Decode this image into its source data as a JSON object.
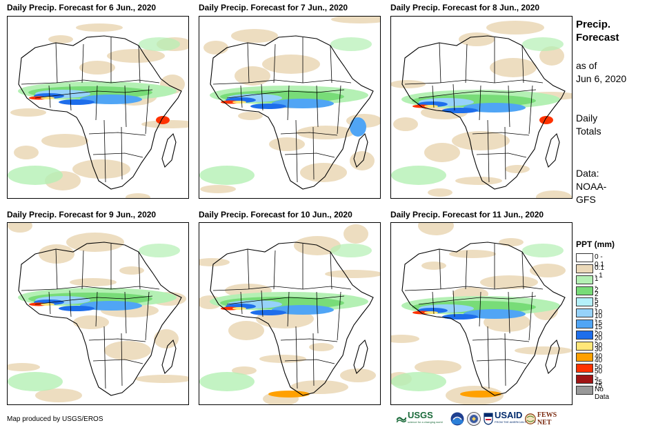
{
  "panels": [
    {
      "title": "Daily Precip. Forecast for 6 Jun., 2020"
    },
    {
      "title": "Daily Precip. Forecast for 7 Jun., 2020"
    },
    {
      "title": "Daily Precip. Forecast for 8 Jun., 2020"
    },
    {
      "title": "Daily Precip. Forecast for 9 Jun., 2020"
    },
    {
      "title": "Daily Precip. Forecast for 10 Jun., 2020"
    },
    {
      "title": "Daily Precip. Forecast for 11 Jun., 2020"
    }
  ],
  "side": {
    "title_line1": "Precip.",
    "title_line2": "Forecast",
    "asof_line1": "as of",
    "asof_line2": "Jun 6, 2020",
    "totals_line1": "Daily",
    "totals_line2": "Totals",
    "data_line1": "Data:",
    "data_line2": "NOAA-",
    "data_line3": "GFS"
  },
  "legend": {
    "title": "PPT (mm)",
    "items": [
      {
        "label": "0 - 0.1",
        "color": "#ffffff"
      },
      {
        "label": "0.1 - 1",
        "color": "#ebd9b9"
      },
      {
        "label": "1 - 2",
        "color": "#b4f0b4"
      },
      {
        "label": "2 - 5",
        "color": "#78dc78"
      },
      {
        "label": "5 - 10",
        "color": "#b4f0fa"
      },
      {
        "label": "10 - 15",
        "color": "#96d2fa"
      },
      {
        "label": "15 - 20",
        "color": "#50a5f5"
      },
      {
        "label": "20 - 30",
        "color": "#1e6eeb"
      },
      {
        "label": "30 - 40",
        "color": "#ffe678"
      },
      {
        "label": "40 - 50",
        "color": "#ffa000"
      },
      {
        "label": "50 - 75",
        "color": "#ff3200"
      },
      {
        "label": "> 75",
        "color": "#a01414"
      },
      {
        "label": "No Data",
        "color": "#999999"
      }
    ]
  },
  "footer": {
    "credit": "Map produced by USGS/EROS"
  },
  "logos": {
    "usgs": "USGS",
    "usgs_tagline": "science for a changing world",
    "usaid": "USAID",
    "usaid_tagline": "FROM THE AMERICAN PEOPLE",
    "fewsnet": "FEWS NET"
  }
}
